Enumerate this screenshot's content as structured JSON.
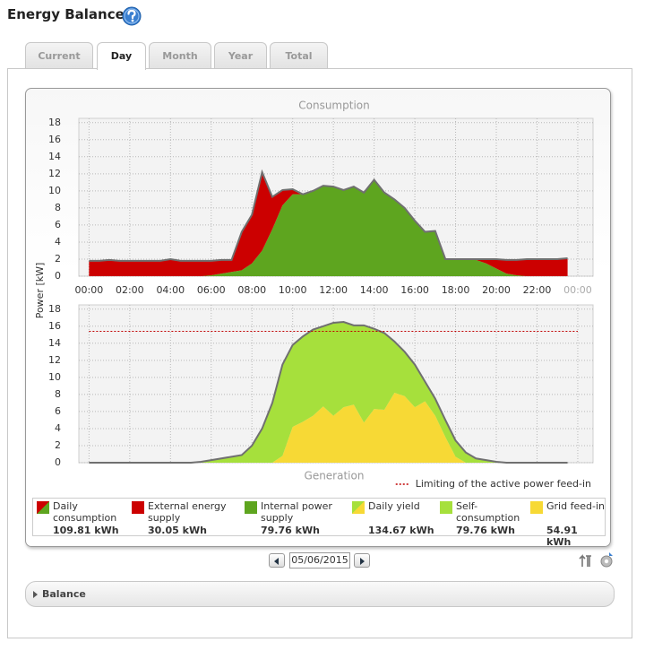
{
  "title": "Energy Balance",
  "tabs": [
    "Current",
    "Day",
    "Month",
    "Year",
    "Total"
  ],
  "active_tab": 1,
  "chart_data": [
    {
      "type": "stacked-area",
      "title": "Consumption",
      "ylabel": "Power [kW]",
      "x": [
        0,
        0.5,
        1,
        1.5,
        2,
        2.5,
        3,
        3.5,
        4,
        4.5,
        5,
        5.5,
        6,
        6.5,
        7,
        7.5,
        8,
        8.5,
        9,
        9.5,
        10,
        10.5,
        11,
        11.5,
        12,
        12.5,
        13,
        13.5,
        14,
        14.5,
        15,
        15.5,
        16,
        16.5,
        17,
        17.5,
        18,
        18.5,
        19,
        19.5,
        20,
        20.5,
        21,
        21.5,
        22,
        22.5,
        23,
        23.5
      ],
      "series": [
        {
          "color": "#5ea51f",
          "values": [
            0,
            0,
            0,
            0,
            0,
            0,
            0,
            0,
            0,
            0,
            0,
            0,
            0.1,
            0.3,
            0.5,
            0.7,
            1.5,
            3.0,
            5.5,
            8.3,
            9.6,
            9.6,
            10.0,
            10.6,
            10.5,
            10.1,
            10.5,
            9.8,
            11.3,
            9.8,
            9.0,
            8.0,
            6.5,
            5.2,
            5.3,
            2.0,
            1.9,
            1.9,
            1.9,
            1.5,
            0.9,
            0.3,
            0.1,
            0,
            0,
            0,
            0,
            0
          ]
        },
        {
          "color": "#cc0000",
          "values": [
            1.8,
            1.8,
            1.9,
            1.8,
            1.8,
            1.8,
            1.8,
            1.8,
            2.0,
            1.8,
            1.8,
            1.8,
            1.7,
            1.6,
            1.4,
            4.5,
            5.7,
            9.2,
            3.8,
            1.8,
            0.6,
            0,
            0,
            0,
            0,
            0,
            0,
            0,
            0,
            0,
            0,
            0,
            0,
            0,
            0,
            0,
            0.1,
            0.1,
            0.1,
            0.5,
            1.1,
            1.6,
            1.8,
            2.0,
            2.0,
            2.0,
            2.0,
            2.1
          ]
        }
      ],
      "xlim": [
        -0.5,
        24.75
      ],
      "xticks": [
        {
          "value": 0,
          "label": "00:00"
        },
        {
          "value": 2,
          "label": "02:00"
        },
        {
          "value": 4,
          "label": "04:00"
        },
        {
          "value": 6,
          "label": "06:00"
        },
        {
          "value": 8,
          "label": "08:00"
        },
        {
          "value": 10,
          "label": "10:00"
        },
        {
          "value": 12,
          "label": "12:00"
        },
        {
          "value": 14,
          "label": "14:00"
        },
        {
          "value": 16,
          "label": "16:00"
        },
        {
          "value": 18,
          "label": "18:00"
        },
        {
          "value": 20,
          "label": "20:00"
        },
        {
          "value": 22,
          "label": "22:00"
        },
        {
          "value": 24,
          "label": "00:00"
        }
      ],
      "ylim": [
        0,
        18.5
      ],
      "yticks": [
        0,
        2,
        4,
        6,
        8,
        10,
        12,
        14,
        16,
        18
      ],
      "grid": true
    },
    {
      "type": "stacked-area",
      "title": "Generation",
      "x": [
        0,
        0.5,
        1,
        1.5,
        2,
        2.5,
        3,
        3.5,
        4,
        4.5,
        5,
        5.5,
        6,
        6.5,
        7,
        7.5,
        8,
        8.5,
        9,
        9.5,
        10,
        10.5,
        11,
        11.5,
        12,
        12.5,
        13,
        13.5,
        14,
        14.5,
        15,
        15.5,
        16,
        16.5,
        17,
        17.5,
        18,
        18.5,
        19,
        19.5,
        20,
        20.5,
        21,
        21.5,
        22,
        22.5,
        23,
        23.5
      ],
      "series": [
        {
          "color": "#f7d935",
          "values": [
            0,
            0,
            0,
            0,
            0,
            0,
            0,
            0,
            0,
            0,
            0,
            0,
            0,
            0,
            0,
            0,
            0,
            0,
            0,
            0.8,
            4.2,
            4.8,
            5.5,
            6.6,
            5.5,
            6.5,
            6.8,
            4.7,
            6.3,
            6.2,
            8.2,
            7.8,
            6.5,
            7.2,
            5.5,
            3.0,
            0.7,
            0,
            0,
            0,
            0,
            0,
            0,
            0,
            0,
            0,
            0,
            0
          ]
        },
        {
          "color": "#a6e03c",
          "values": [
            0,
            0,
            0,
            0,
            0,
            0,
            0,
            0,
            0,
            0,
            0,
            0.1,
            0.3,
            0.5,
            0.7,
            0.9,
            2.0,
            4.0,
            7.0,
            10.7,
            9.6,
            10.0,
            10.1,
            9.4,
            10.9,
            10.0,
            9.3,
            11.4,
            9.4,
            9.0,
            6.0,
            5.2,
            5.0,
            2.3,
            2.0,
            2.0,
            1.9,
            1.2,
            0.5,
            0.3,
            0.1,
            0,
            0,
            0,
            0,
            0,
            0,
            0
          ]
        }
      ],
      "limit": {
        "value": 15.4,
        "label": "Limiting of the active power feed-in",
        "color": "#c00000"
      },
      "xlim": [
        -0.5,
        24.75
      ],
      "xticks": [
        0,
        2,
        4,
        6,
        8,
        10,
        12,
        14,
        16,
        18,
        20,
        22,
        24
      ],
      "ylim": [
        0,
        18.5
      ],
      "yticks": [
        0,
        2,
        4,
        6,
        8,
        10,
        12,
        14,
        16,
        18
      ],
      "grid": true
    }
  ],
  "legend": [
    {
      "label": "Daily consumption",
      "total": "109.81 kWh",
      "colors": [
        "#cc0000",
        "#5ea51f"
      ]
    },
    {
      "label": "External energy supply",
      "total": "30.05 kWh",
      "colors": [
        "#cc0000"
      ]
    },
    {
      "label": "Internal power supply",
      "total": "79.76 kWh",
      "colors": [
        "#5ea51f"
      ]
    },
    {
      "label": "Daily yield",
      "total": "134.67 kWh",
      "colors": [
        "#a6e03c",
        "#f7d935"
      ]
    },
    {
      "label": "Self-consumption",
      "total": "79.76 kWh",
      "colors": [
        "#a6e03c"
      ]
    },
    {
      "label": "Grid feed-in",
      "total": "54.91 kWh",
      "colors": [
        "#f7d935"
      ]
    }
  ],
  "date": "05/06/2015",
  "balance": "Balance"
}
